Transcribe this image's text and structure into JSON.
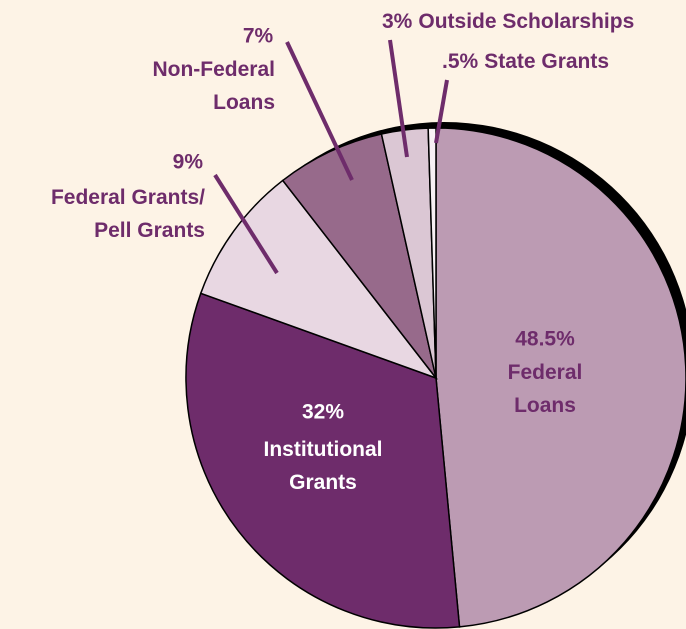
{
  "chart_data": {
    "type": "pie",
    "categories": [
      "Federal Loans",
      "Institutional Grants",
      "Federal Grants/ Pell Grants",
      "Non-Federal Loans",
      "Outside Scholarships",
      "State Grants"
    ],
    "values": [
      48.5,
      32,
      9,
      7,
      3,
      0.5
    ],
    "value_labels": [
      "48.5%",
      "32%",
      "9%",
      "7%",
      "3%",
      ".5%"
    ],
    "colors": [
      "#bc9bb3",
      "#6e2c6b",
      "#e8d7e2",
      "#976a8b",
      "#dbc7d4",
      "#f7f0f4"
    ]
  }
}
